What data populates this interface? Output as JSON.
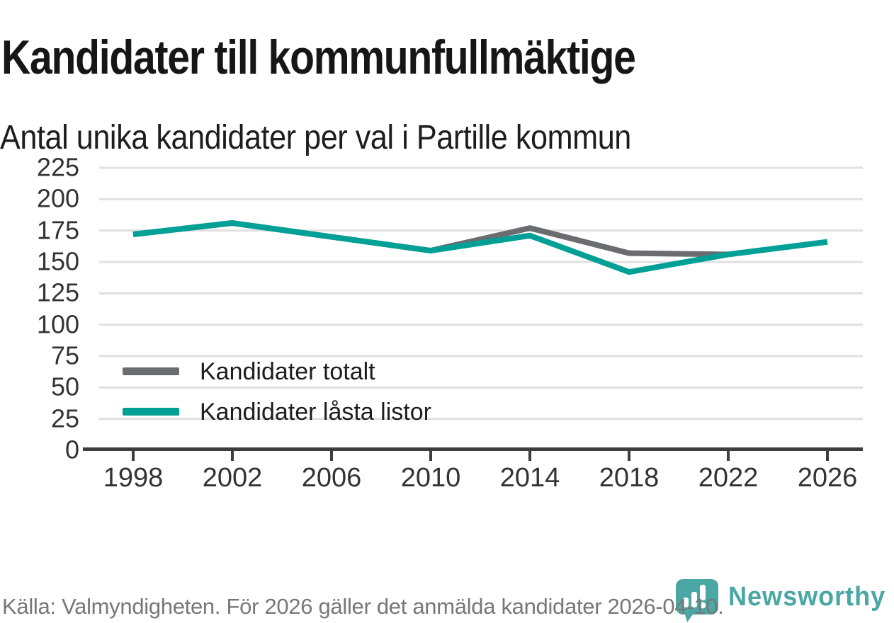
{
  "header": {
    "title": "Kandidater till kommunfullmäktige",
    "subtitle": "Antal unika kandidater per val i Partille kommun"
  },
  "chart_data": {
    "type": "line",
    "title": "Kandidater till kommunfullmäktige",
    "subtitle": "Antal unika kandidater per val i Partille kommun",
    "categories": [
      1998,
      2002,
      2006,
      2010,
      2014,
      2018,
      2022,
      2026
    ],
    "series": [
      {
        "name": "Kandidater totalt",
        "color": "#6b6c70",
        "values": [
          172,
          181,
          170,
          159,
          177,
          157,
          156,
          null
        ]
      },
      {
        "name": "Kandidater låsta listor",
        "color": "#00a096",
        "values": [
          172,
          181,
          170,
          159,
          171,
          142,
          156,
          166
        ]
      }
    ],
    "ylim": [
      0,
      225
    ],
    "yticks": [
      0,
      25,
      50,
      75,
      100,
      125,
      150,
      175,
      200,
      225
    ],
    "grid": "horizontal",
    "legend_position": "inside-bottom-left"
  },
  "footer": {
    "source": "Källa: Valmyndigheten. För 2026 gäller det anmälda kandidater 2026-04-10."
  },
  "brand": {
    "name": "Newsworthy",
    "logo_color": "#4aa7a3"
  },
  "colors": {
    "grid": "#e0e0e0",
    "axis": "#3d3d3d",
    "title_text": "#161616",
    "axis_label_text": "#333333",
    "footer_text": "#77777a"
  }
}
